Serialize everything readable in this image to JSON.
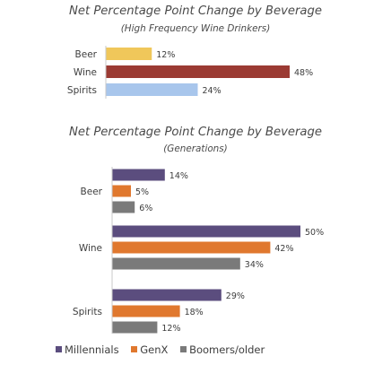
{
  "chart_data": [
    {
      "type": "bar",
      "orientation": "horizontal",
      "title": "Net Percentage Point Change by Beverage",
      "subtitle": "(High Frequency Wine Drinkers)",
      "categories": [
        "Beer",
        "Wine",
        "Spirits"
      ],
      "values": [
        12,
        48,
        24
      ],
      "value_labels": [
        "12%",
        "48%",
        "24%"
      ],
      "colors": [
        "#f0c75a",
        "#9b3a33",
        "#a8c6ec"
      ],
      "xlim": [
        0,
        50
      ]
    },
    {
      "type": "bar",
      "orientation": "horizontal",
      "title": "Net Percentage Point Change by Beverage",
      "subtitle": "(Generations)",
      "categories": [
        "Beer",
        "Wine",
        "Spirits"
      ],
      "series": [
        {
          "name": "Millennials",
          "color": "#5b4d7e",
          "values": [
            14,
            50,
            29
          ],
          "value_labels": [
            "14%",
            "50%",
            "29%"
          ]
        },
        {
          "name": "GenX",
          "color": "#e0782e",
          "values": [
            5,
            42,
            18
          ],
          "value_labels": [
            "5%",
            "42%",
            "18%"
          ]
        },
        {
          "name": "Boomers/older",
          "color": "#7a7a7a",
          "values": [
            6,
            34,
            12
          ],
          "value_labels": [
            "6%",
            "34%",
            "12%"
          ]
        }
      ],
      "legend": "bottom",
      "xlim": [
        0,
        50
      ]
    }
  ]
}
